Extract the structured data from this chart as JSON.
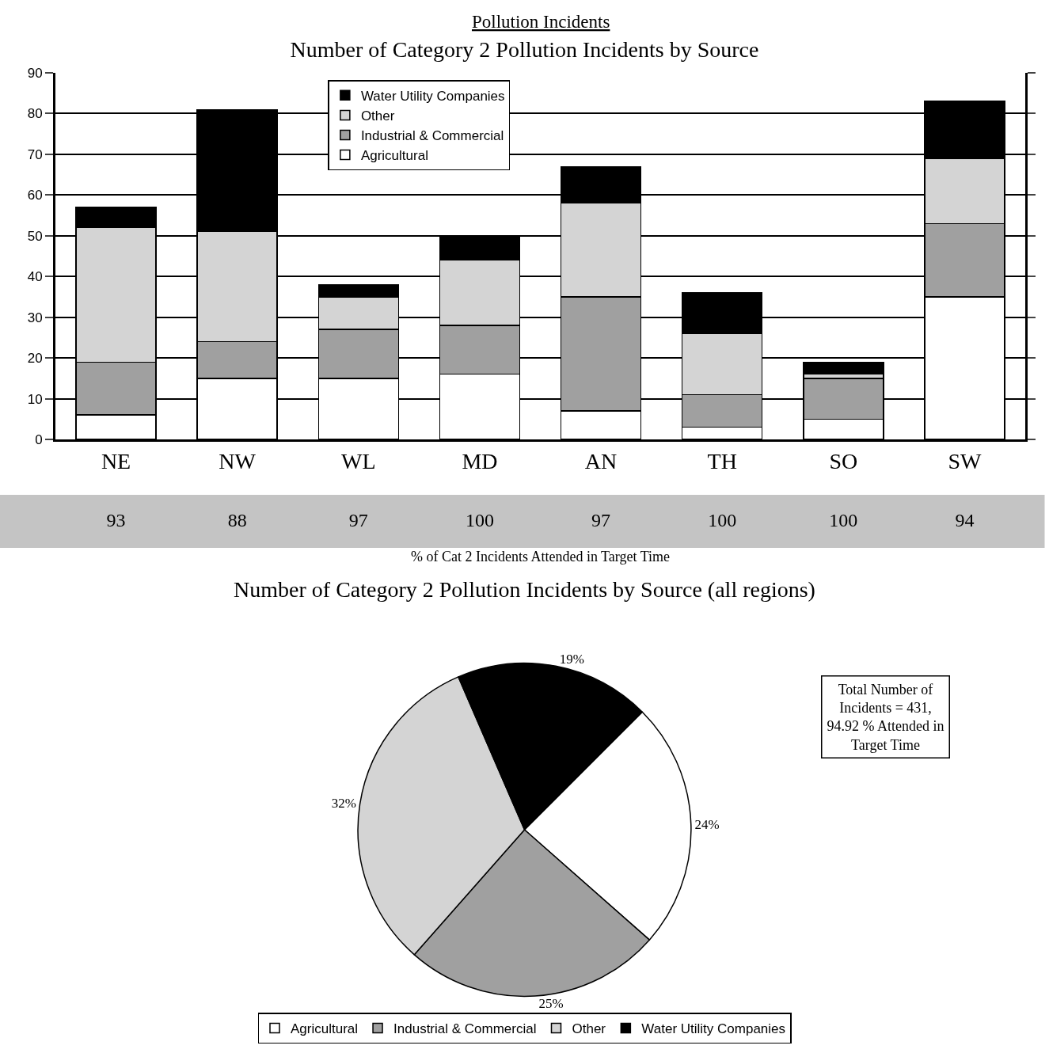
{
  "chart_data": [
    {
      "type": "bar",
      "title": "Number of Category 2 Pollution Incidents by Source",
      "annotations": [
        "Pollution Incidents"
      ],
      "categories": [
        "NE",
        "NW",
        "WL",
        "MD",
        "AN",
        "TH",
        "SO",
        "SW"
      ],
      "stacked": true,
      "series": [
        {
          "name": "Agricultural",
          "color": "#ffffff",
          "values": [
            6,
            15,
            15,
            16,
            7,
            3,
            5,
            35
          ]
        },
        {
          "name": "Industrial & Commercial",
          "color": "#a0a0a0",
          "values": [
            13,
            9,
            12,
            12,
            28,
            8,
            10,
            18
          ]
        },
        {
          "name": "Other",
          "color": "#d4d4d4",
          "values": [
            33,
            27,
            8,
            16,
            23,
            15,
            1,
            16
          ]
        },
        {
          "name": "Water Utility Companies",
          "color": "#000000",
          "values": [
            5,
            30,
            3,
            6,
            9,
            10,
            3,
            14
          ]
        }
      ],
      "ylim": [
        0,
        90
      ],
      "yticks": [
        0,
        10,
        20,
        30,
        40,
        50,
        60,
        70,
        80,
        90
      ],
      "grid": "y",
      "legend": "top"
    },
    {
      "type": "other",
      "xlabel": "% of Cat 2 Incidents Attended in Target Time",
      "categories": [
        null,
        null,
        null,
        null,
        null,
        null,
        null,
        null
      ],
      "values": [
        93,
        88,
        97,
        100,
        97,
        100,
        100,
        94
      ],
      "color": "#c4c4c4",
      "data_labels": true
    },
    {
      "type": "pie",
      "title": "Number of Category 2 Pollution Incidents by Source (all regions)",
      "annotations": [
        "Total Number of\nIncidents = 431,\n94.92 % Attended in\nTarget Time"
      ],
      "categories": [
        "Agricultural",
        "Industrial & Commercial",
        "Other",
        "Water Utility Companies"
      ],
      "values": [
        24,
        25,
        32,
        19
      ],
      "value_labels": [
        "24%",
        "25%",
        "32%",
        "19%"
      ],
      "colors": [
        "#ffffff",
        "#a0a0a0",
        "#d4d4d4",
        "#000000"
      ],
      "legend": "bottom"
    }
  ]
}
